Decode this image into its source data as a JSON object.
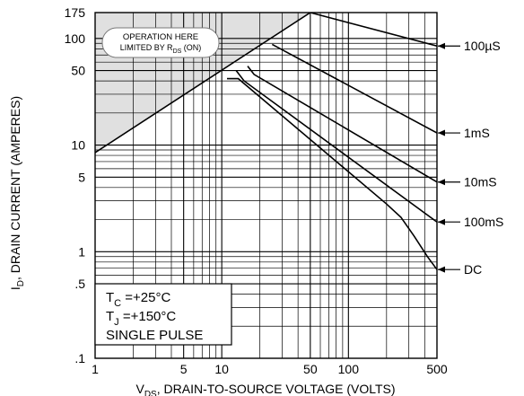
{
  "chart_data": {
    "type": "line",
    "title": "",
    "xlabel_main": "V",
    "xlabel_sub": "DS",
    "xlabel_rest": ", DRAIN-TO-SOURCE VOLTAGE (VOLTS)",
    "ylabel_main": "I",
    "ylabel_sub": "D",
    "ylabel_rest": ", DRAIN CURRENT (AMPERES)",
    "x_scale": "log",
    "y_scale": "log",
    "xlim": [
      1,
      500
    ],
    "ylim": [
      0.1,
      175
    ],
    "x_ticks": [
      {
        "value": 1,
        "label": "1"
      },
      {
        "value": 5,
        "label": "5"
      },
      {
        "value": 10,
        "label": "10"
      },
      {
        "value": 50,
        "label": "50"
      },
      {
        "value": 100,
        "label": "100"
      },
      {
        "value": 500,
        "label": "500"
      }
    ],
    "y_ticks": [
      {
        "value": 175,
        "label": "175"
      },
      {
        "value": 100,
        "label": "100"
      },
      {
        "value": 50,
        "label": "50"
      },
      {
        "value": 10,
        "label": "10"
      },
      {
        "value": 5,
        "label": "5"
      },
      {
        "value": 1,
        "label": "1"
      },
      {
        "value": 0.5,
        "label": ".5"
      },
      {
        "value": 0.1,
        "label": ".1"
      }
    ],
    "grid": true,
    "rds_limit": [
      [
        1,
        8.5
      ],
      [
        50,
        175
      ]
    ],
    "region_label": {
      "line1": "OPERATION HERE",
      "line2_main": "LIMITED BY R",
      "line2_sub": "DS",
      "line2_rest": " (ON)"
    },
    "series": [
      {
        "name": "100µS",
        "points": [
          [
            50,
            175
          ],
          [
            500,
            85
          ]
        ]
      },
      {
        "name": "1mS",
        "points": [
          [
            25,
            88
          ],
          [
            500,
            13
          ]
        ]
      },
      {
        "name": "10mS",
        "points": [
          [
            16,
            55
          ],
          [
            18,
            46
          ],
          [
            500,
            4.5
          ]
        ]
      },
      {
        "name": "100mS",
        "points": [
          [
            13,
            50
          ],
          [
            15,
            40
          ],
          [
            500,
            1.9
          ]
        ]
      },
      {
        "name": "DC",
        "points": [
          [
            11,
            42
          ],
          [
            13.5,
            42
          ],
          [
            200,
            2.8
          ],
          [
            260,
            2.1
          ],
          [
            330,
            1.4
          ],
          [
            420,
            0.9
          ],
          [
            500,
            0.68
          ]
        ]
      }
    ],
    "legend_labels": [
      {
        "text": "100µS",
        "y": 85
      },
      {
        "text": "1mS",
        "y": 13
      },
      {
        "text": "10mS",
        "y": 4.5
      },
      {
        "text": "100mS",
        "y": 1.9
      },
      {
        "text": "DC",
        "y": 0.68
      }
    ],
    "conditions": [
      {
        "main": "T",
        "sub": "C",
        "rest": " =+25°C"
      },
      {
        "main": "T",
        "sub": "J",
        "rest": " =+150°C"
      },
      {
        "main": "SINGLE  PULSE",
        "sub": "",
        "rest": ""
      }
    ]
  }
}
